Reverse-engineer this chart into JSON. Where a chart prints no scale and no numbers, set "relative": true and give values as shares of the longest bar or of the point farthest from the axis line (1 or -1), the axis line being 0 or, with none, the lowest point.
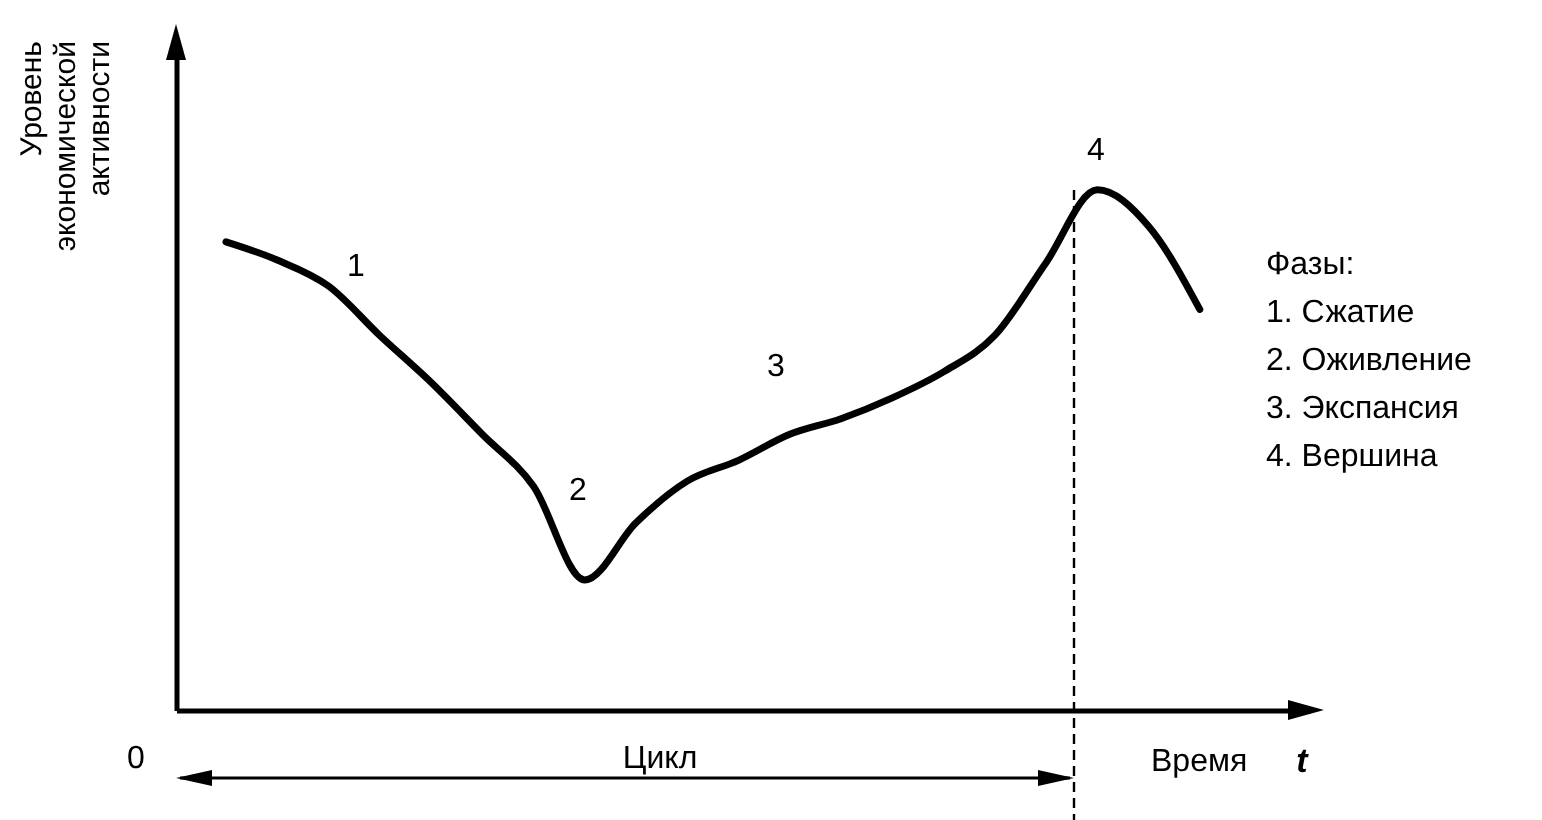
{
  "chart_data": {
    "type": "line",
    "relative": true,
    "ylabel": "Уровень экономической активности",
    "xlabel": "Время",
    "categories": [
      null,
      null,
      null,
      null,
      null,
      null,
      null,
      null,
      null,
      null,
      null,
      null,
      null,
      null,
      null,
      null,
      null,
      null,
      null,
      null
    ],
    "series": [
      {
        "color": "#000000",
        "values": [
          0.9,
          0.865,
          0.815,
          0.72,
          0.63,
          0.53,
          0.43,
          0.25,
          0.36,
          0.44,
          0.48,
          0.53,
          0.56,
          0.6,
          0.65,
          0.72,
          0.86,
          1.0,
          0.93,
          0.77
        ]
      }
    ],
    "annotations": [
      "1",
      "2",
      "3",
      "4",
      "Фазы:",
      "1. Сжатие",
      "2. Оживление",
      "3. Экспансия",
      "4. Вершина",
      "0",
      "Цикл",
      "t"
    ],
    "line_style": "solid",
    "marker": "none",
    "grid": false
  }
}
